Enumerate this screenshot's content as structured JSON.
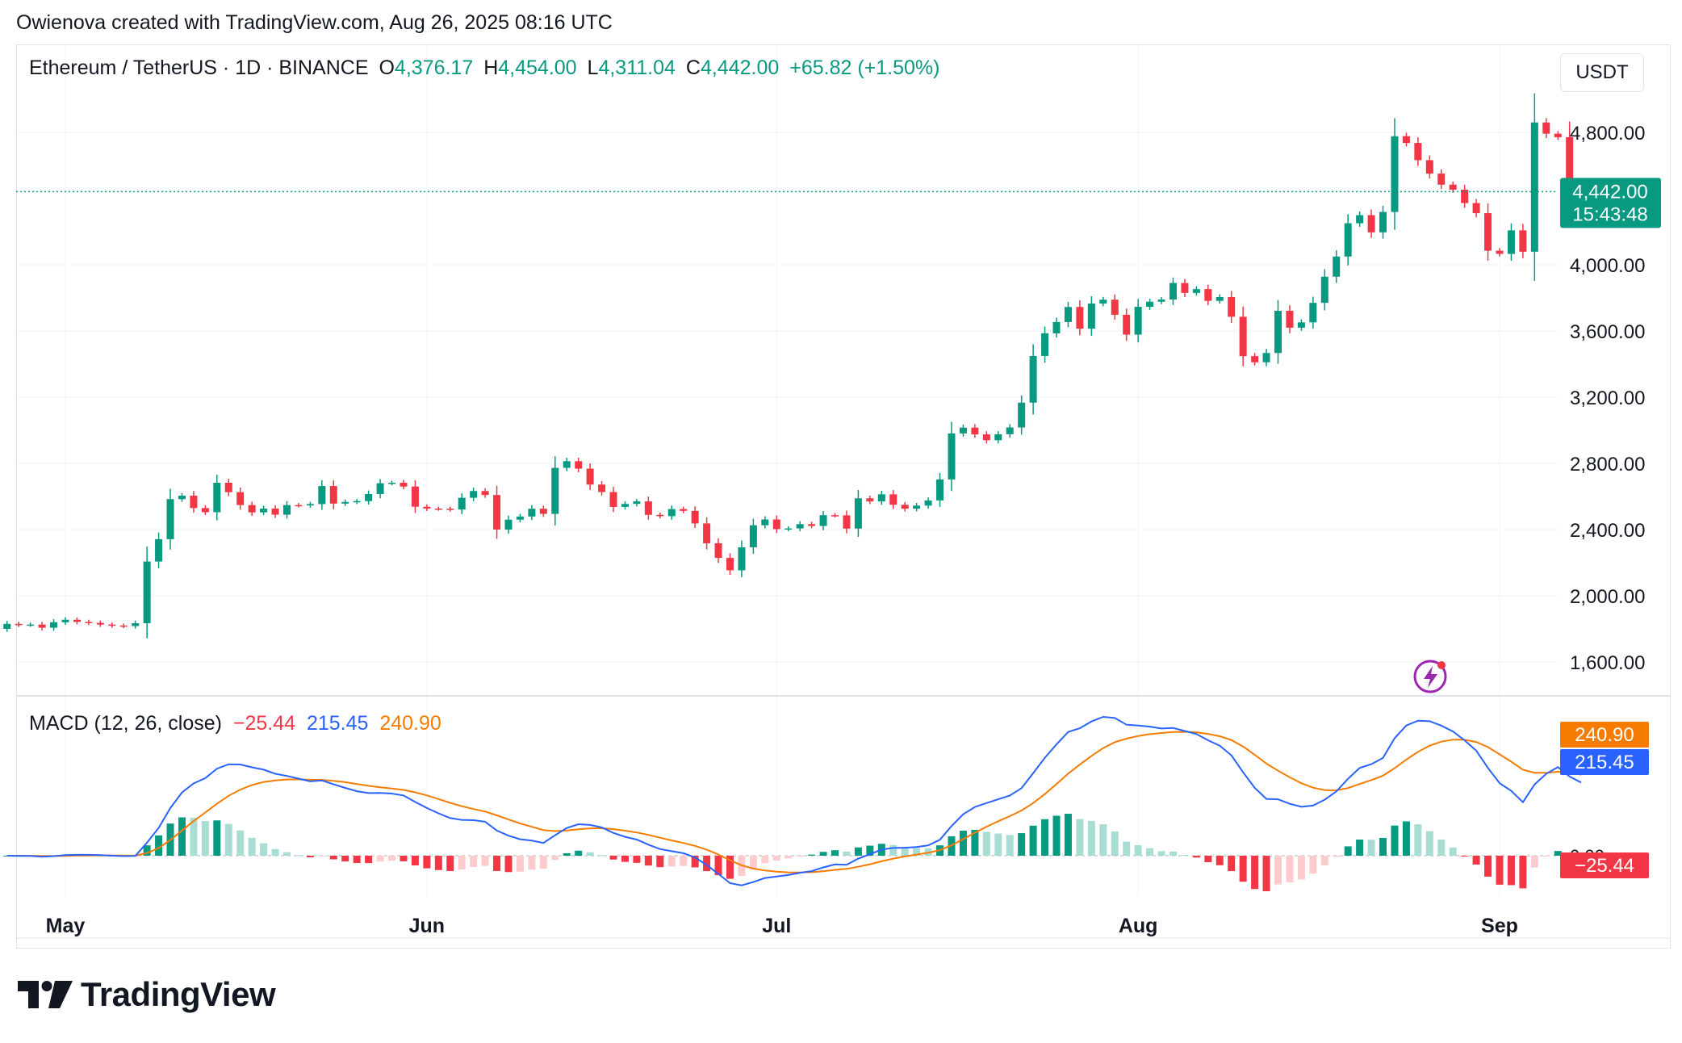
{
  "credit": "Owienova created with TradingView.com, Aug 26, 2025 08:16 UTC",
  "header": {
    "symbol": "Ethereum / TetherUS · 1D · BINANCE",
    "o_label": "O",
    "o_value": "4,376.17",
    "h_label": "H",
    "h_value": "4,454.00",
    "l_label": "L",
    "l_value": "4,311.04",
    "c_label": "C",
    "c_value": "4,442.00",
    "change": "+65.82 (+1.50%)"
  },
  "currency_button": "USDT",
  "macd_header": {
    "name": "MACD (12, 26, close)",
    "histogram": "−25.44",
    "macd": "215.45",
    "signal": "240.90"
  },
  "brand": "TradingView",
  "price_tag": {
    "price": "4,442.00",
    "countdown": "15:43:48"
  },
  "macd_tags": {
    "signal": "240.90",
    "macd": "215.45",
    "histogram": "−25.44",
    "zero_label": "0.00"
  },
  "colors": {
    "up": "#089981",
    "down": "#f23645",
    "up_light": "#a8ddd3",
    "down_light": "#fccbcd",
    "macd_line": "#2962ff",
    "signal_line": "#f57c00",
    "grid": "#f0f3fa",
    "text": "#131722"
  },
  "chart_data": [
    {
      "type": "candlestick",
      "title": "Ethereum / TetherUS · 1D · BINANCE",
      "ylabel": "USDT",
      "ylim": [
        1400,
        5200
      ],
      "y_ticks": [
        "1,600.00",
        "2,000.00",
        "2,400.00",
        "2,800.00",
        "3,200.00",
        "3,600.00",
        "4,000.00",
        "4,800.00"
      ],
      "y_tick_values": [
        1600,
        2000,
        2400,
        2800,
        3200,
        3600,
        4000,
        4800
      ],
      "x_ticks": [
        "May",
        "Jun",
        "Jul",
        "Aug",
        "Sep"
      ],
      "x_tick_dates": [
        "2025-05-01",
        "2025-06-01",
        "2025-07-01",
        "2025-08-01",
        "2025-09-01"
      ],
      "first_date": "2025-04-26",
      "last_price": 4442.0,
      "closes": [
        1830,
        1825,
        1826,
        1807,
        1840,
        1855,
        1842,
        1836,
        1826,
        1820,
        1817,
        1834,
        2207,
        2342,
        2584,
        2605,
        2530,
        2505,
        2683,
        2626,
        2548,
        2504,
        2527,
        2490,
        2548,
        2546,
        2554,
        2663,
        2557,
        2567,
        2572,
        2615,
        2680,
        2683,
        2660,
        2538,
        2527,
        2526,
        2521,
        2592,
        2633,
        2609,
        2400,
        2460,
        2479,
        2526,
        2495,
        2773,
        2813,
        2768,
        2672,
        2627,
        2537,
        2555,
        2570,
        2489,
        2481,
        2524,
        2513,
        2437,
        2317,
        2229,
        2154,
        2293,
        2426,
        2461,
        2403,
        2407,
        2433,
        2422,
        2487,
        2486,
        2406,
        2589,
        2570,
        2613,
        2550,
        2526,
        2545,
        2576,
        2703,
        2981,
        3016,
        2975,
        2940,
        2976,
        3017,
        3167,
        3449,
        3586,
        3654,
        3745,
        3614,
        3766,
        3789,
        3698,
        3578,
        3746,
        3777,
        3790,
        3890,
        3830,
        3853,
        3782,
        3805,
        3686,
        3448,
        3411,
        3467,
        3722,
        3620,
        3652,
        3770,
        3928,
        4050,
        4251,
        4300,
        4196,
        4319,
        4777,
        4736,
        4632,
        4551,
        4484,
        4454,
        4373,
        4312,
        4085,
        4066,
        4208,
        4079,
        4860,
        4792,
        4771,
        4376,
        4442
      ],
      "opens": [
        1800,
        1830,
        1825,
        1826,
        1807,
        1840,
        1855,
        1842,
        1836,
        1826,
        1820,
        1817,
        1834,
        2207,
        2342,
        2584,
        2605,
        2530,
        2505,
        2683,
        2626,
        2548,
        2504,
        2527,
        2490,
        2548,
        2546,
        2554,
        2663,
        2557,
        2567,
        2572,
        2615,
        2680,
        2683,
        2660,
        2538,
        2527,
        2526,
        2521,
        2592,
        2633,
        2609,
        2400,
        2460,
        2479,
        2526,
        2495,
        2773,
        2813,
        2768,
        2672,
        2627,
        2537,
        2555,
        2570,
        2489,
        2481,
        2524,
        2513,
        2437,
        2317,
        2229,
        2154,
        2293,
        2426,
        2461,
        2403,
        2407,
        2433,
        2422,
        2487,
        2486,
        2406,
        2589,
        2570,
        2613,
        2550,
        2526,
        2545,
        2576,
        2703,
        2981,
        3016,
        2975,
        2940,
        2976,
        3017,
        3167,
        3449,
        3586,
        3654,
        3745,
        3614,
        3766,
        3789,
        3698,
        3578,
        3746,
        3777,
        3790,
        3890,
        3830,
        3853,
        3782,
        3805,
        3686,
        3448,
        3411,
        3467,
        3722,
        3620,
        3652,
        3770,
        3928,
        4050,
        4251,
        4300,
        4196,
        4319,
        4777,
        4736,
        4632,
        4551,
        4484,
        4454,
        4373,
        4312,
        4085,
        4066,
        4208,
        4079,
        4860,
        4792,
        4771,
        4376
      ]
    },
    {
      "type": "macd",
      "title": "MACD (12, 26, close)",
      "series": [
        {
          "name": "MACD",
          "color": "#2962ff",
          "last": 215.45
        },
        {
          "name": "Signal",
          "color": "#f57c00",
          "last": 240.9
        },
        {
          "name": "Histogram",
          "last": -25.44
        }
      ]
    }
  ]
}
